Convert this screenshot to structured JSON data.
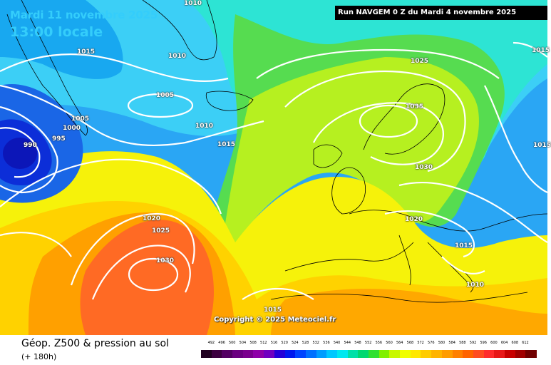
{
  "header": {
    "date": "Mardi 11 novembre 2025",
    "time": "13:00 locale",
    "run": "Run NAVGEM 0 Z du Mardi 4 novembre 2025"
  },
  "copyright": "Copyright © 2025 Meteociel.fr",
  "footer": {
    "title": "Géop. Z500 & pression au sol",
    "subtitle": "(+ 180h)"
  },
  "isobar_labels": [
    "1010",
    "1015",
    "1010",
    "1005",
    "1005",
    "1000",
    "995",
    "990",
    "1010",
    "1015",
    "1020",
    "1025",
    "1030",
    "1025",
    "1035",
    "1030",
    "1020",
    "1015",
    "1010",
    "1015",
    "1015",
    "1015"
  ],
  "legend": {
    "ticks": [
      "492",
      "496",
      "500",
      "504",
      "508",
      "512",
      "516",
      "520",
      "524",
      "528",
      "532",
      "536",
      "540",
      "544",
      "548",
      "552",
      "556",
      "560",
      "564",
      "568",
      "572",
      "576",
      "580",
      "584",
      "588",
      "592",
      "596",
      "600",
      "604",
      "608",
      "612"
    ],
    "colors": [
      "#200020",
      "#3c0040",
      "#520062",
      "#6a0080",
      "#7a008e",
      "#8e00a8",
      "#7000c0",
      "#2400d8",
      "#0018ee",
      "#0044ff",
      "#0070ff",
      "#009cff",
      "#00c8ff",
      "#00e8f0",
      "#00e0a8",
      "#00d870",
      "#30e030",
      "#80f000",
      "#c8f800",
      "#f0ff00",
      "#ffe800",
      "#ffcc00",
      "#ffb400",
      "#ff9c00",
      "#ff8000",
      "#ff6400",
      "#ff4c20",
      "#ff2c2c",
      "#e81818",
      "#c80000",
      "#a00000",
      "#700000"
    ]
  }
}
